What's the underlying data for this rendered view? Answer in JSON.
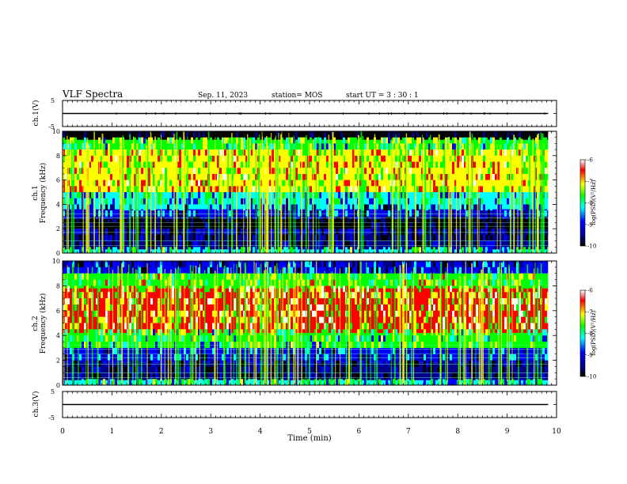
{
  "header": {
    "title": "VLF Spectra",
    "date": "Sep. 11, 2023",
    "station": "station= MOS",
    "start": "start  UT =   3 : 30 : 1"
  },
  "colorbar": {
    "label": "log(PSD)(V²/Hz)",
    "ticks": [
      "-6",
      "-7",
      "-8",
      "-9",
      "-10"
    ],
    "colors": [
      "#000000",
      "#00008b",
      "#0000ff",
      "#00ffff",
      "#00ff00",
      "#ffff00",
      "#ff0000",
      "#ffffff"
    ]
  },
  "chart_data": [
    {
      "type": "line",
      "name": "ch1-waveform",
      "ylabel": "ch.1(V)",
      "ylim": [
        -5,
        5
      ],
      "yticks": [
        "5",
        "-5"
      ],
      "x": [
        0,
        9.83
      ],
      "values": [
        0,
        0
      ]
    },
    {
      "type": "heatmap",
      "name": "ch1-spectrogram",
      "ylabel_top": "ch.1",
      "ylabel": "Frequency (kHz)",
      "ylim": [
        0,
        10
      ],
      "yticks": [
        "0",
        "2",
        "4",
        "6",
        "8",
        "10"
      ],
      "xlim": [
        0,
        10
      ],
      "color_range": [
        -10,
        -6
      ],
      "bands": [
        {
          "f": [
            0,
            0.3
          ],
          "level": -8.2
        },
        {
          "f": [
            0.3,
            1.6
          ],
          "level": -9.4
        },
        {
          "f": [
            1.6,
            2.0
          ],
          "level": -8.6
        },
        {
          "f": [
            2.0,
            2.8
          ],
          "level": -9.7
        },
        {
          "f": [
            2.8,
            3.6
          ],
          "level": -8.8
        },
        {
          "f": [
            3.6,
            5.0
          ],
          "level": -8.3
        },
        {
          "f": [
            5.0,
            8.5
          ],
          "level": -7.2
        },
        {
          "f": [
            8.5,
            9.3
          ],
          "level": -7.8
        },
        {
          "f": [
            9.3,
            10
          ],
          "level": -9.8
        }
      ]
    },
    {
      "type": "heatmap",
      "name": "ch2-spectrogram",
      "ylabel_top": "ch.2",
      "ylabel": "Frequency (kHz)",
      "ylim": [
        0,
        10
      ],
      "yticks": [
        "0",
        "2",
        "4",
        "6",
        "8",
        "10"
      ],
      "xlim": [
        0,
        10
      ],
      "color_range": [
        -10,
        -6
      ],
      "bands": [
        {
          "f": [
            0,
            0.4
          ],
          "level": -8.2
        },
        {
          "f": [
            0.4,
            1.8
          ],
          "level": -9.4
        },
        {
          "f": [
            1.8,
            3.0
          ],
          "level": -8.8
        },
        {
          "f": [
            3.0,
            4.2
          ],
          "level": -7.9
        },
        {
          "f": [
            4.2,
            7.8
          ],
          "level": -6.9
        },
        {
          "f": [
            7.8,
            9.0
          ],
          "level": -7.6
        },
        {
          "f": [
            9.0,
            10
          ],
          "level": -8.9
        }
      ]
    },
    {
      "type": "line",
      "name": "ch3-waveform",
      "ylabel": "ch.3(V)",
      "ylim": [
        -5,
        5
      ],
      "yticks": [
        "5",
        "-5"
      ],
      "x": [
        0,
        9.83
      ],
      "values": [
        0,
        0
      ]
    }
  ],
  "xaxis": {
    "label": "Time  (min)",
    "range": [
      0,
      10
    ],
    "ticks": [
      "0",
      "1",
      "2",
      "3",
      "4",
      "5",
      "6",
      "7",
      "8",
      "9",
      "10"
    ]
  }
}
